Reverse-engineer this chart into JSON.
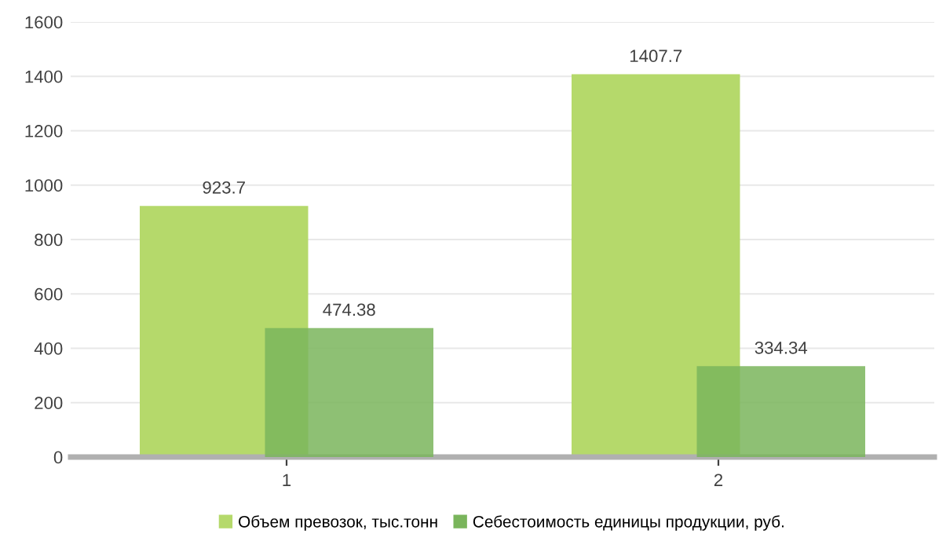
{
  "chart_data": {
    "type": "bar",
    "categories": [
      "1",
      "2"
    ],
    "series": [
      {
        "name": "Объем превозок, тыс.тонн",
        "color": "#b5d96b",
        "values": [
          923.7,
          1407.7
        ]
      },
      {
        "name": "Себестоимость единицы продукции, руб.",
        "color": "#7ab55c",
        "values": [
          474.38,
          334.34
        ]
      }
    ],
    "ylim": [
      0,
      1600
    ],
    "yticks": [
      0,
      200,
      400,
      600,
      800,
      1000,
      1200,
      1400,
      1600
    ],
    "grid": "y",
    "legend": "bottom",
    "data_labels": true
  }
}
